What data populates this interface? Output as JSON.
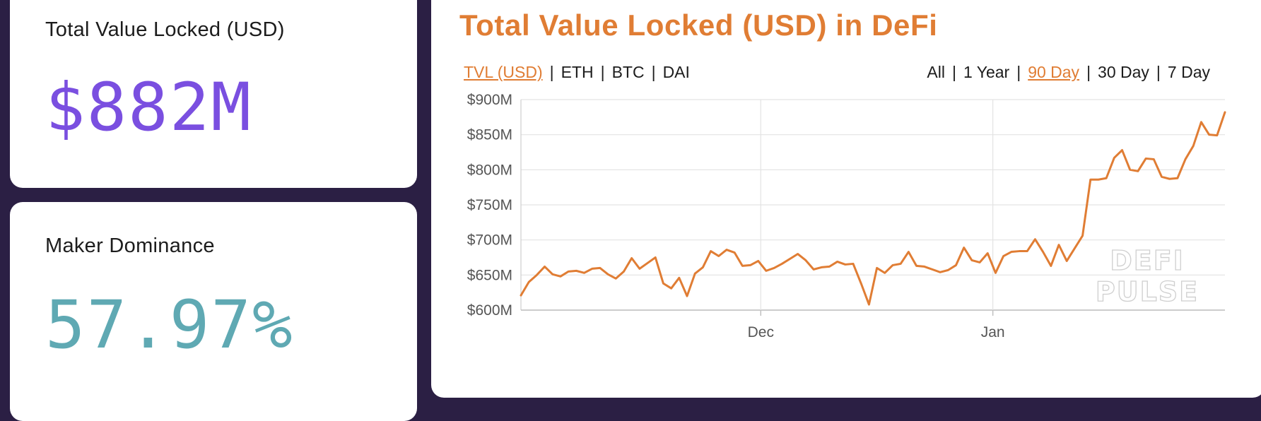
{
  "stats": {
    "tvl": {
      "label": "Total Value Locked (USD)",
      "value": "$882M",
      "color": "#7a4fe0"
    },
    "dominance": {
      "label": "Maker Dominance",
      "value": "57.97%",
      "color": "#5fa9b3"
    }
  },
  "chart_header": {
    "title": "Total Value Locked (USD) in DeFi",
    "title_color": "#e07d34",
    "metric_filters": [
      "TVL (USD)",
      "ETH",
      "BTC",
      "DAI"
    ],
    "metric_active": "TVL (USD)",
    "range_filters": [
      "All",
      "1 Year",
      "90 Day",
      "30 Day",
      "7 Day"
    ],
    "range_active": "90 Day",
    "active_color": "#e07d34"
  },
  "watermark": {
    "line1": "DEFI",
    "line2": "PULSE"
  },
  "chart_data": {
    "type": "line",
    "title": "Total Value Locked (USD) in DeFi",
    "xlabel": "",
    "ylabel": "",
    "ylim": [
      600,
      900
    ],
    "y_ticks": [
      600,
      650,
      700,
      750,
      800,
      850,
      900
    ],
    "y_tick_labels": [
      "$600M",
      "$650M",
      "$700M",
      "$750M",
      "$800M",
      "$850M",
      "$900M"
    ],
    "x_ticks": [
      31,
      61
    ],
    "x_tick_labels": [
      "Dec",
      "Jan"
    ],
    "xlim": [
      0,
      91
    ],
    "grid": true,
    "line_color": "#e07d34",
    "series": [
      {
        "values": [
          621,
          640,
          650,
          662,
          651,
          648,
          655,
          656,
          653,
          659,
          660,
          651,
          645,
          655,
          674,
          659,
          667,
          675,
          638,
          631,
          646,
          620,
          652,
          661,
          684,
          677,
          686,
          682,
          663,
          664,
          670,
          656,
          660,
          666,
          673,
          680,
          671,
          658,
          661,
          662,
          669,
          665,
          666,
          638,
          608,
          660,
          653,
          664,
          666,
          683,
          663,
          662,
          658,
          654,
          657,
          664,
          689,
          671,
          668,
          681,
          653,
          677,
          683,
          684,
          684,
          701,
          683,
          663,
          693,
          670,
          688,
          706,
          786,
          786,
          788,
          817,
          828,
          800,
          798,
          816,
          815,
          790,
          787,
          788,
          815,
          834,
          868,
          850,
          849,
          882
        ]
      }
    ]
  }
}
